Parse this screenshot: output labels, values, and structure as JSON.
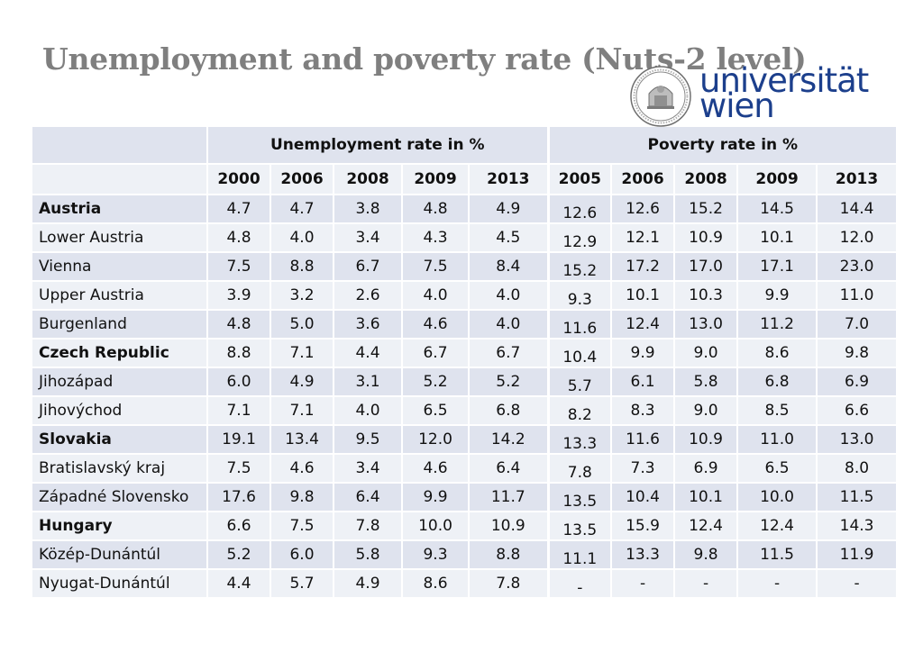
{
  "title": "Unemployment and poverty rate (Nuts-2 level)",
  "logo": {
    "line1": "universität",
    "line2": "wien",
    "icon": "university-seal-icon",
    "color": "#1c3f8c"
  },
  "table": {
    "groups": [
      "Unemployment rate in %",
      "Poverty rate in %"
    ],
    "unemployment_years": [
      "2000",
      "2006",
      "2008",
      "2009",
      "2013"
    ],
    "poverty_years": [
      "2005",
      "2006",
      "2008",
      "2009",
      "2013"
    ],
    "rows": [
      {
        "region": "Austria",
        "bold": true,
        "unemployment": [
          "4.7",
          "4.7",
          "3.8",
          "4.8",
          "4.9"
        ],
        "poverty": [
          "12.6",
          "12.6",
          "15.2",
          "14.5",
          "14.4"
        ]
      },
      {
        "region": "Lower Austria",
        "bold": false,
        "unemployment": [
          "4.8",
          "4.0",
          "3.4",
          "4.3",
          "4.5"
        ],
        "poverty": [
          "12.9",
          "12.1",
          "10.9",
          "10.1",
          "12.0"
        ]
      },
      {
        "region": "Vienna",
        "bold": false,
        "unemployment": [
          "7.5",
          "8.8",
          "6.7",
          "7.5",
          "8.4"
        ],
        "poverty": [
          "15.2",
          "17.2",
          "17.0",
          "17.1",
          "23.0"
        ]
      },
      {
        "region": "Upper Austria",
        "bold": false,
        "unemployment": [
          "3.9",
          "3.2",
          "2.6",
          "4.0",
          "4.0"
        ],
        "poverty": [
          "9.3",
          "10.1",
          "10.3",
          "9.9",
          "11.0"
        ]
      },
      {
        "region": "Burgenland",
        "bold": false,
        "unemployment": [
          "4.8",
          "5.0",
          "3.6",
          "4.6",
          "4.0"
        ],
        "poverty": [
          "11.6",
          "12.4",
          "13.0",
          "11.2",
          "7.0"
        ]
      },
      {
        "region": "Czech Republic",
        "bold": true,
        "unemployment": [
          "8.8",
          "7.1",
          "4.4",
          "6.7",
          "6.7"
        ],
        "poverty": [
          "10.4",
          "9.9",
          "9.0",
          "8.6",
          "9.8"
        ]
      },
      {
        "region": "Jihozápad",
        "bold": false,
        "unemployment": [
          "6.0",
          "4.9",
          "3.1",
          "5.2",
          "5.2"
        ],
        "poverty": [
          "5.7",
          "6.1",
          "5.8",
          "6.8",
          "6.9"
        ]
      },
      {
        "region": "Jihovýchod",
        "bold": false,
        "unemployment": [
          "7.1",
          "7.1",
          "4.0",
          "6.5",
          "6.8"
        ],
        "poverty": [
          "8.2",
          "8.3",
          "9.0",
          "8.5",
          "6.6"
        ]
      },
      {
        "region": "Slovakia",
        "bold": true,
        "unemployment": [
          "19.1",
          "13.4",
          "9.5",
          "12.0",
          "14.2"
        ],
        "poverty": [
          "13.3",
          "11.6",
          "10.9",
          "11.0",
          "13.0"
        ]
      },
      {
        "region": "Bratislavský kraj",
        "bold": false,
        "unemployment": [
          "7.5",
          "4.6",
          "3.4",
          "4.6",
          "6.4"
        ],
        "poverty": [
          "7.8",
          "7.3",
          "6.9",
          "6.5",
          "8.0"
        ]
      },
      {
        "region": "Západné Slovensko",
        "bold": false,
        "unemployment": [
          "17.6",
          "9.8",
          "6.4",
          "9.9",
          "11.7"
        ],
        "poverty": [
          "13.5",
          "10.4",
          "10.1",
          "10.0",
          "11.5"
        ]
      },
      {
        "region": "Hungary",
        "bold": true,
        "unemployment": [
          "6.6",
          "7.5",
          "7.8",
          "10.0",
          "10.9"
        ],
        "poverty": [
          "13.5",
          "15.9",
          "12.4",
          "12.4",
          "14.3"
        ]
      },
      {
        "region": "Közép-Dunántúl",
        "bold": false,
        "unemployment": [
          "5.2",
          "6.0",
          "5.8",
          "9.3",
          "8.8"
        ],
        "poverty": [
          "11.1",
          "13.3",
          "9.8",
          "11.5",
          "11.9"
        ]
      },
      {
        "region": "Nyugat-Dunántúl",
        "bold": false,
        "unemployment": [
          "4.4",
          "5.7",
          "4.9",
          "8.6",
          "7.8"
        ],
        "poverty": [
          "-",
          "-",
          "-",
          "-",
          "-"
        ]
      }
    ]
  }
}
